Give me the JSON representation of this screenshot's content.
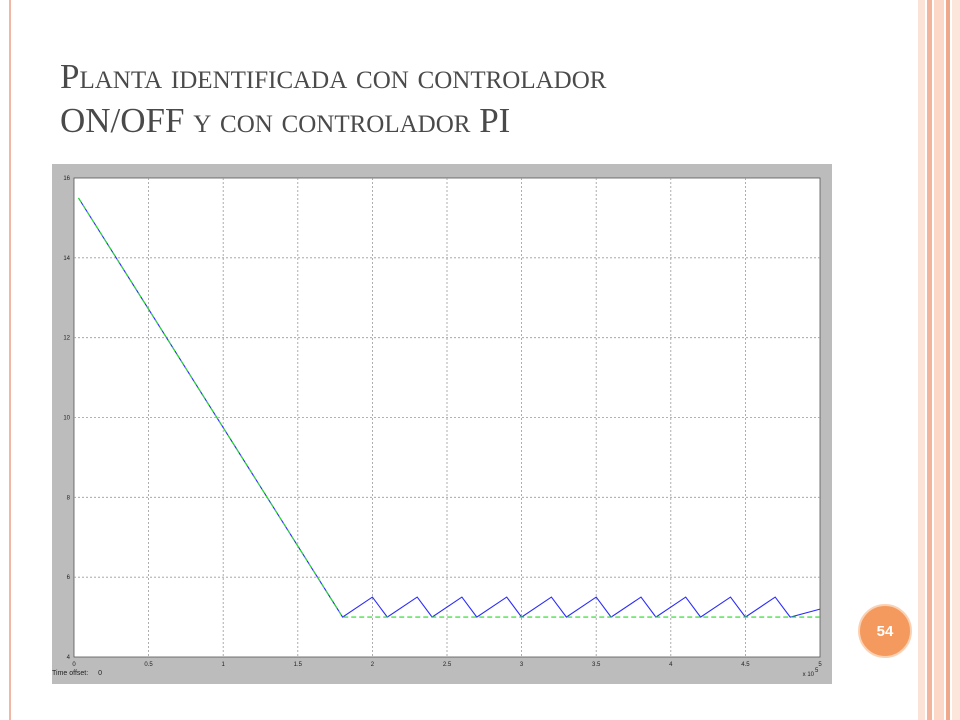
{
  "slide": {
    "title": "Planta identificada con controlador\nON/OFF y con controlador PI",
    "page_number": "54",
    "time_offset_label": "Time offset:",
    "time_offset_value": "0",
    "x_exponent_label": "x 10",
    "x_exponent_power": "5",
    "colors": {
      "border_accent": "#f0b8a4",
      "badge": "#f59a5e",
      "scope_background": "#bcbcbc",
      "plot_background": "#ffffff",
      "series_onoff": "#2a2aff",
      "series_pi": "#22dd22"
    }
  },
  "chart_data": {
    "type": "line",
    "title": "",
    "xlabel": "",
    "ylabel": "",
    "xlim": [
      0,
      5
    ],
    "ylim": [
      4,
      16
    ],
    "x_ticks": [
      "0",
      "0.5",
      "1",
      "1.5",
      "2",
      "2.5",
      "3",
      "3.5",
      "4",
      "4.5",
      "5"
    ],
    "y_ticks": [
      "4",
      "6",
      "8",
      "10",
      "12",
      "14",
      "16"
    ],
    "grid": true,
    "x_scale_note": "x 10^5",
    "series": [
      {
        "color": "#2a2aff",
        "style": "solid",
        "x": [
          0.03,
          1.8,
          2.0,
          2.1,
          2.3,
          2.4,
          2.6,
          2.7,
          2.9,
          3.0,
          3.2,
          3.3,
          3.5,
          3.6,
          3.8,
          3.9,
          4.1,
          4.2,
          4.4,
          4.5,
          4.7,
          4.8,
          5.0
        ],
        "y": [
          15.5,
          5.0,
          5.5,
          5.0,
          5.5,
          5.0,
          5.5,
          5.0,
          5.5,
          5.0,
          5.5,
          5.0,
          5.5,
          5.0,
          5.5,
          5.0,
          5.5,
          5.0,
          5.5,
          5.0,
          5.5,
          5.0,
          5.2
        ]
      },
      {
        "color": "#22dd22",
        "style": "dashed",
        "x": [
          0.03,
          1.8,
          5.0
        ],
        "y": [
          15.5,
          5.0,
          5.0
        ]
      }
    ]
  }
}
